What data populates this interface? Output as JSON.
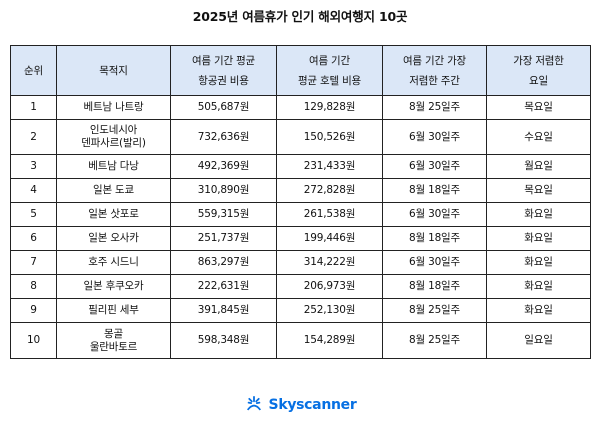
{
  "title": "2025년 여름휴가 인기 해외여행지 10곳",
  "table": {
    "headers": {
      "rank": "순위",
      "destination": "목적지",
      "airfare_line1": "여름 기간 평균",
      "airfare_line2": "항공권 비용",
      "hotel_line1": "여름 기간",
      "hotel_line2": "평균 호텔 비용",
      "cheapest_week_line1": "여름 기간 가장",
      "cheapest_week_line2": "저렴한 주간",
      "cheapest_day_line1": "가장 저렴한",
      "cheapest_day_line2": "요일"
    },
    "rows": [
      {
        "rank": "1",
        "dest1": "베트남 나트랑",
        "dest2": "",
        "airfare": "505,687원",
        "hotel": "129,828원",
        "week": "8월 25일주",
        "day": "목요일"
      },
      {
        "rank": "2",
        "dest1": "인도네시아",
        "dest2": "덴파사르(발리)",
        "airfare": "732,636원",
        "hotel": "150,526원",
        "week": "6월 30일주",
        "day": "수요일"
      },
      {
        "rank": "3",
        "dest1": "베트남 다낭",
        "dest2": "",
        "airfare": "492,369원",
        "hotel": "231,433원",
        "week": "6월 30일주",
        "day": "월요일"
      },
      {
        "rank": "4",
        "dest1": "일본 도쿄",
        "dest2": "",
        "airfare": "310,890원",
        "hotel": "272,828원",
        "week": "8월 18일주",
        "day": "목요일"
      },
      {
        "rank": "5",
        "dest1": "일본 삿포로",
        "dest2": "",
        "airfare": "559,315원",
        "hotel": "261,538원",
        "week": "6월 30일주",
        "day": "화요일"
      },
      {
        "rank": "6",
        "dest1": "일본 오사카",
        "dest2": "",
        "airfare": "251,737원",
        "hotel": "199,446원",
        "week": "8월 18일주",
        "day": "화요일"
      },
      {
        "rank": "7",
        "dest1": "호주 시드니",
        "dest2": "",
        "airfare": "863,297원",
        "hotel": "314,222원",
        "week": "6월 30일주",
        "day": "화요일"
      },
      {
        "rank": "8",
        "dest1": "일본 후쿠오카",
        "dest2": "",
        "airfare": "222,631원",
        "hotel": "206,973원",
        "week": "8월 18일주",
        "day": "화요일"
      },
      {
        "rank": "9",
        "dest1": "필리핀 세부",
        "dest2": "",
        "airfare": "391,845원",
        "hotel": "252,130원",
        "week": "8월 25일주",
        "day": "화요일"
      },
      {
        "rank": "10",
        "dest1": "몽골",
        "dest2": "울란바토르",
        "airfare": "598,348원",
        "hotel": "154,289원",
        "week": "8월 25일주",
        "day": "일요일"
      }
    ]
  },
  "logo": {
    "text": "Skyscanner",
    "icon": "skyscanner-sunrise-icon",
    "color": "#0770e3"
  },
  "colors": {
    "header_bg": "#dbe7f7",
    "border": "#222222"
  }
}
